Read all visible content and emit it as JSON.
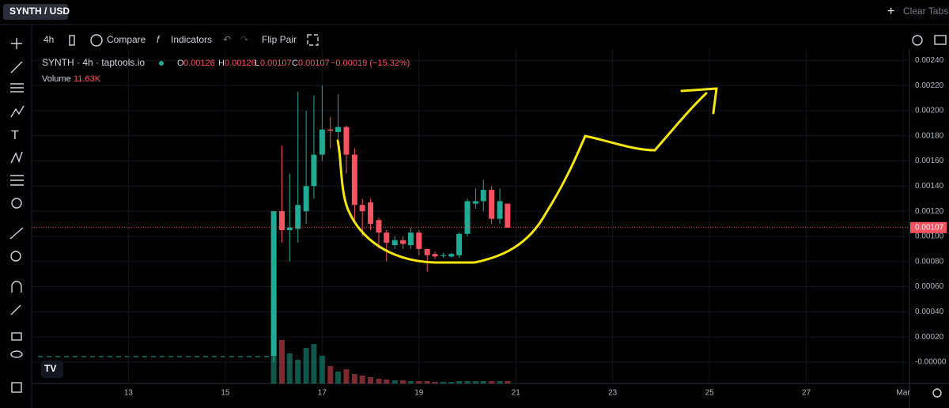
{
  "tab": {
    "title": "SYNTH / USD",
    "clear": "Clear Tabs"
  },
  "toolbar": {
    "interval": "4h",
    "compare": "Compare",
    "indicators": "Indicators",
    "flip": "Flip Pair"
  },
  "legend": {
    "symbol": "SYNTH · 4h · taptools.io",
    "o_label": "O",
    "o": "0.00126",
    "h_label": "H",
    "h": "0.00126",
    "l_label": "L",
    "l": "0.00107",
    "c_label": "C",
    "c": "0.00107",
    "change": "−0.00019 (−15.32%)",
    "volume_label": "Volume",
    "volume": "11.63K"
  },
  "chart_data": {
    "type": "candlestick",
    "x": [
      16.0,
      16.17,
      16.33,
      16.5,
      16.67,
      16.83,
      17.0,
      17.17,
      17.33,
      17.5,
      17.67,
      17.83,
      18.0,
      18.17,
      18.33,
      18.5,
      18.67,
      18.83,
      19.0,
      19.17,
      19.33,
      19.5,
      19.67,
      19.83,
      20.0,
      20.17,
      20.33,
      20.5,
      20.67,
      20.83
    ],
    "open": [
      5e-05,
      0.0012,
      0.00105,
      0.00106,
      0.0012,
      0.0014,
      0.00165,
      0.00185,
      0.00183,
      0.00187,
      0.00165,
      0.00125,
      0.00127,
      0.00113,
      0.00103,
      0.00093,
      0.00097,
      0.00093,
      0.00103,
      0.0009,
      0.00086,
      0.00085,
      0.00084,
      0.00085,
      0.00102,
      0.00126,
      0.00128,
      0.00137,
      0.00114,
      0.00126
    ],
    "high": [
      0.0012,
      0.00172,
      0.0015,
      0.00215,
      0.002,
      0.00212,
      0.0022,
      0.00195,
      0.00213,
      0.00188,
      0.0017,
      0.0013,
      0.0013,
      0.00115,
      0.00105,
      0.001,
      0.001,
      0.00107,
      0.00105,
      0.0009,
      0.00088,
      0.00087,
      0.00087,
      0.00103,
      0.0013,
      0.00138,
      0.00145,
      0.0014,
      0.00138,
      0.00126
    ],
    "low": [
      0.0,
      0.00095,
      0.0008,
      0.00095,
      0.0011,
      0.0013,
      0.0016,
      0.0017,
      0.0017,
      0.0015,
      0.0011,
      0.001,
      0.00105,
      0.0009,
      0.0008,
      0.0009,
      0.0009,
      0.0009,
      0.00085,
      0.00072,
      0.00082,
      0.00083,
      0.00083,
      0.00083,
      0.001,
      0.00122,
      0.0012,
      0.0011,
      0.0011,
      0.00107
    ],
    "close": [
      0.0012,
      0.00105,
      0.00107,
      0.00125,
      0.0014,
      0.00165,
      0.00185,
      0.00184,
      0.00187,
      0.00165,
      0.00125,
      0.0012,
      0.0011,
      0.00103,
      0.00095,
      0.00097,
      0.00094,
      0.00103,
      0.0009,
      0.00085,
      0.00084,
      0.00085,
      0.00086,
      0.00102,
      0.00128,
      0.00128,
      0.00137,
      0.00114,
      0.00128,
      0.00107
    ],
    "volume": [
      105,
      55,
      38,
      30,
      45,
      50,
      35,
      22,
      15,
      18,
      12,
      10,
      8,
      6,
      5,
      4,
      4,
      3,
      3,
      3,
      2,
      2,
      2,
      3,
      3,
      3,
      3,
      3,
      3,
      3
    ],
    "volume_lim": [
      0,
      150
    ],
    "up_color": "#22ab94",
    "down_color": "#f7525f",
    "last_price": {
      "value": 0.00107,
      "label": "0.00107"
    },
    "xlim": [
      11.0,
      29.13
    ],
    "xticks": [
      13,
      15,
      17,
      19,
      21,
      23,
      25,
      27,
      {
        "value": 29,
        "label": "Mar"
      }
    ],
    "ylim": [
      -0.00017,
      0.00249
    ],
    "yticks": [
      {
        "value": 0,
        "label": "-0.00000"
      },
      {
        "value": 0.0002,
        "label": "0.00020"
      },
      {
        "value": 0.0004,
        "label": "0.00040"
      },
      {
        "value": 0.0006,
        "label": "0.00060"
      },
      {
        "value": 0.0008,
        "label": "0.00080"
      },
      {
        "value": 0.001,
        "label": "0.00100"
      },
      {
        "value": 0.0012,
        "label": "0.00120"
      },
      {
        "value": 0.0014,
        "label": "0.00140"
      },
      {
        "value": 0.0016,
        "label": "0.00160"
      },
      {
        "value": 0.0018,
        "label": "0.00180"
      },
      {
        "value": 0.002,
        "label": "0.00200"
      },
      {
        "value": 0.0022,
        "label": "0.00220"
      },
      {
        "value": 0.0024,
        "label": "0.00240"
      }
    ],
    "grid": true
  }
}
